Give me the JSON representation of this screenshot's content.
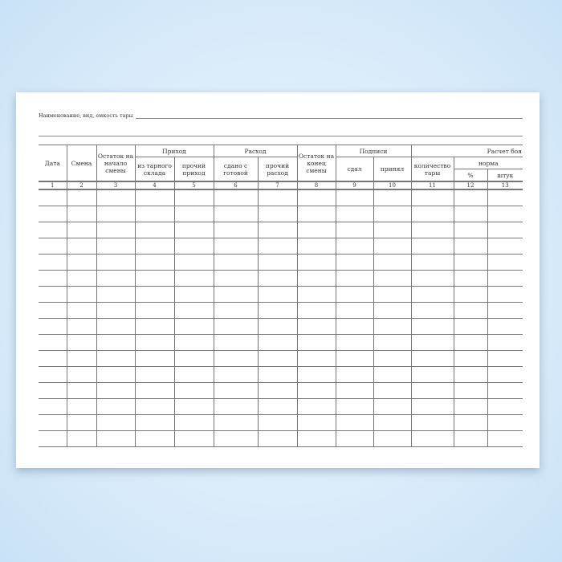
{
  "form": {
    "title_label": "Наименование, вид, емкость тары",
    "headers": {
      "date": "Дата",
      "shift": "Смена",
      "start_balance": "Остаток на начало смены",
      "income": "Приход",
      "income_warehouse": "из тарного склада",
      "income_other": "прочий приход",
      "expense": "Расход",
      "expense_finished": "сдано с готовой",
      "expense_other": "прочий расход",
      "end_balance": "Остаток на конец смены",
      "signatures": "Подписи",
      "handed": "сдал",
      "accepted": "принял",
      "breakage": "Расчет боя",
      "quantity": "количество тары",
      "norm": "норма",
      "percent": "%",
      "pieces": "штук"
    },
    "column_numbers": [
      "1",
      "2",
      "3",
      "4",
      "5",
      "6",
      "7",
      "8",
      "9",
      "10",
      "11",
      "12",
      "13"
    ],
    "empty_rows": 16
  }
}
